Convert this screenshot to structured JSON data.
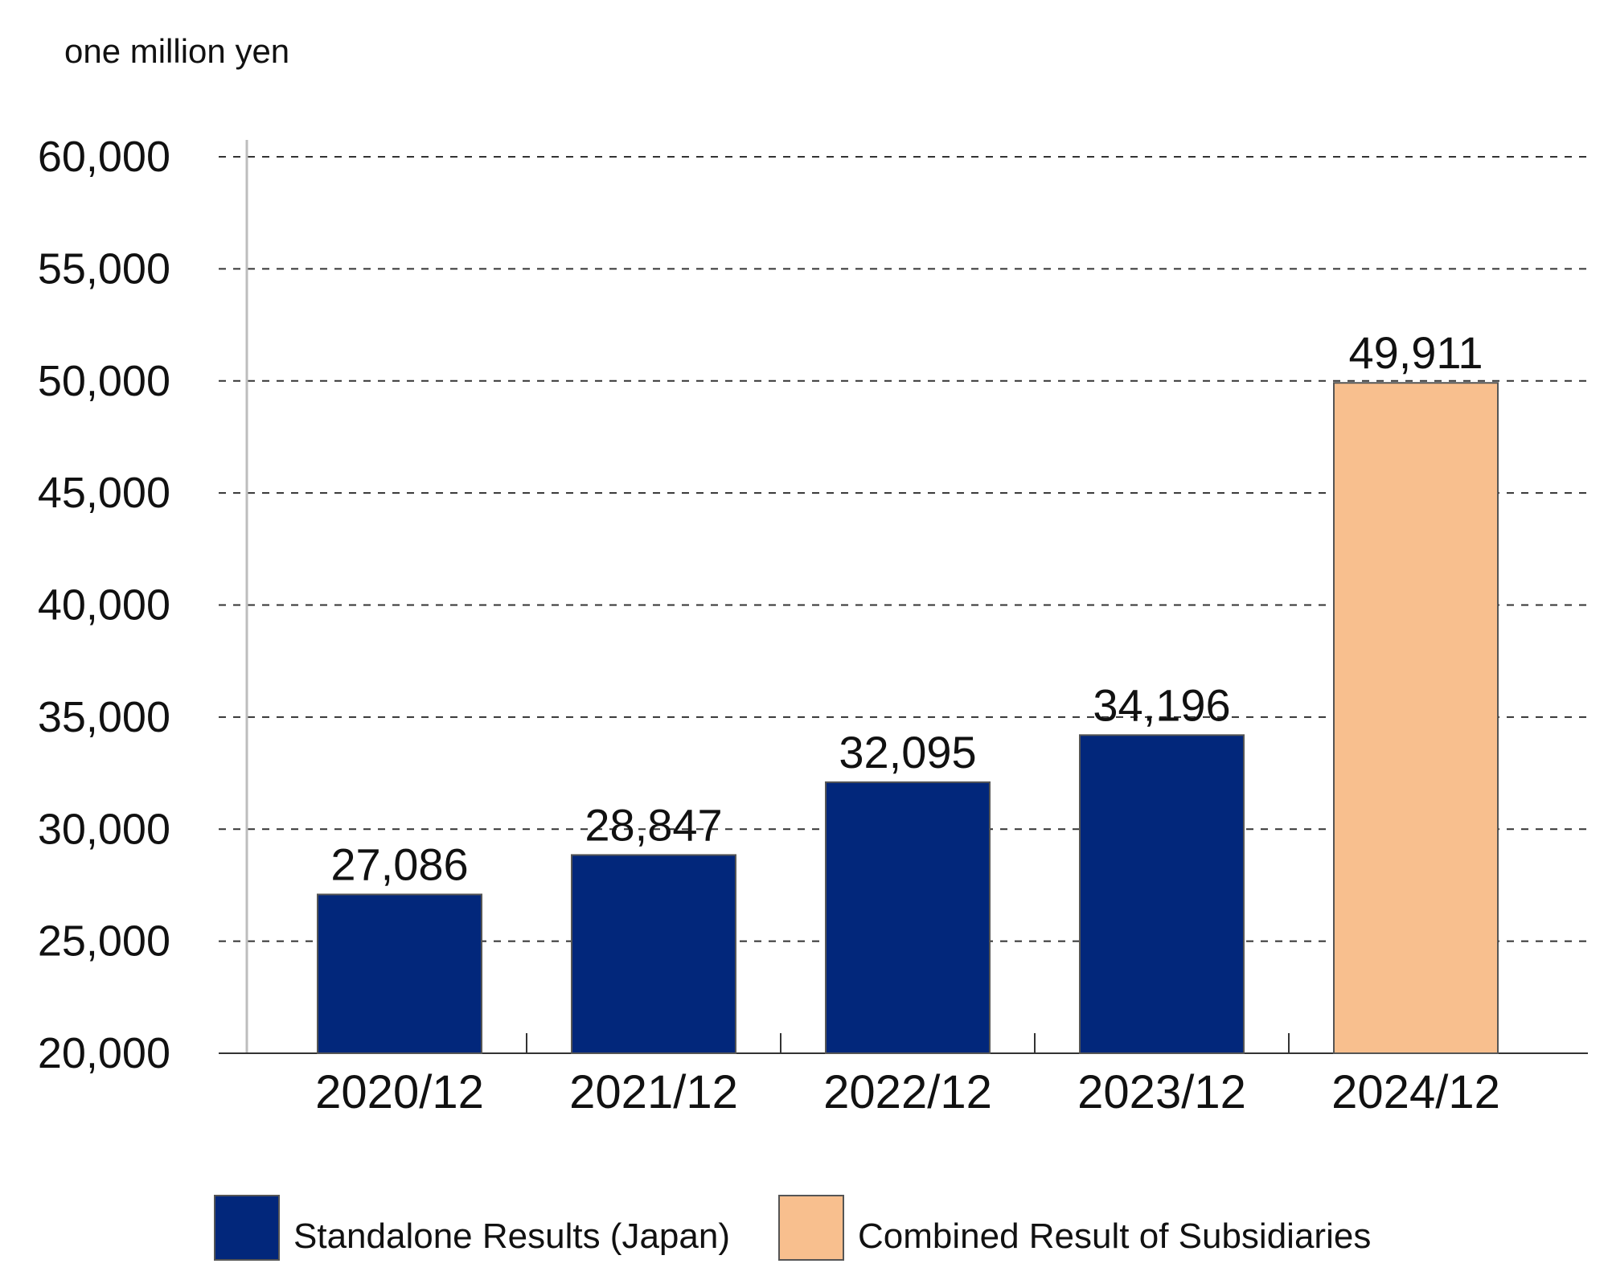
{
  "chart_data": {
    "type": "bar",
    "unit_label": "one million yen",
    "categories": [
      "2020/12",
      "2021/12",
      "2022/12",
      "2023/12",
      "2024/12"
    ],
    "values": [
      27086,
      28847,
      32095,
      34196,
      49911
    ],
    "value_labels": [
      "27,086",
      "28,847",
      "32,095",
      "34,196",
      "49,911"
    ],
    "series_index": [
      0,
      0,
      0,
      0,
      1
    ],
    "ylim": [
      20000,
      60000
    ],
    "yticks": [
      20000,
      25000,
      30000,
      35000,
      40000,
      45000,
      50000,
      55000,
      60000
    ],
    "ytick_labels": [
      "20,000",
      "25,000",
      "30,000",
      "35,000",
      "40,000",
      "45,000",
      "50,000",
      "55,000",
      "60,000"
    ],
    "grid": true,
    "grid_style": "dashed",
    "legend_position": "bottom",
    "series": [
      {
        "name": "Standalone Results (Japan)",
        "color": "#02277b"
      },
      {
        "name": "Combined Result of Subsidiaries",
        "color": "#f8bf8e"
      }
    ]
  }
}
